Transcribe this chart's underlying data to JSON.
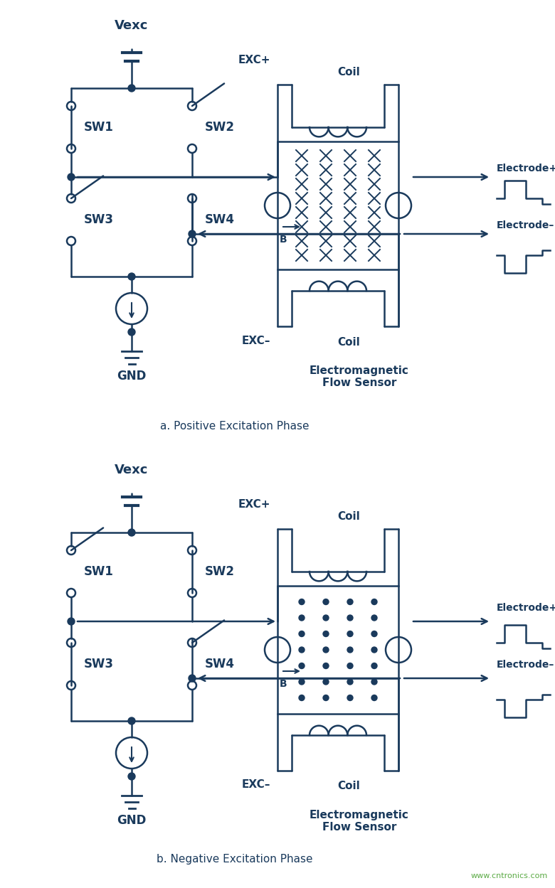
{
  "color": "#1a3a5c",
  "bg_color": "#ffffff",
  "fig_width": 7.8,
  "fig_height": 12.49,
  "caption_a": "a. Positive Excitation Phase",
  "caption_b": "b. Negative Excitation Phase",
  "watermark": "www.cntronics.com",
  "label_vexc": "Vexc",
  "label_gnd": "GND",
  "label_sw1": "SW1",
  "label_sw2": "SW2",
  "label_sw3": "SW3",
  "label_sw4": "SW4",
  "label_exc_plus": "EXC+",
  "label_exc_minus": "EXC–",
  "label_coil": "Coil",
  "label_electrode_plus": "Electrode+",
  "label_electrode_minus": "Electrode–",
  "label_emf": "Electromagnetic\nFlow Sensor",
  "label_B": "B"
}
